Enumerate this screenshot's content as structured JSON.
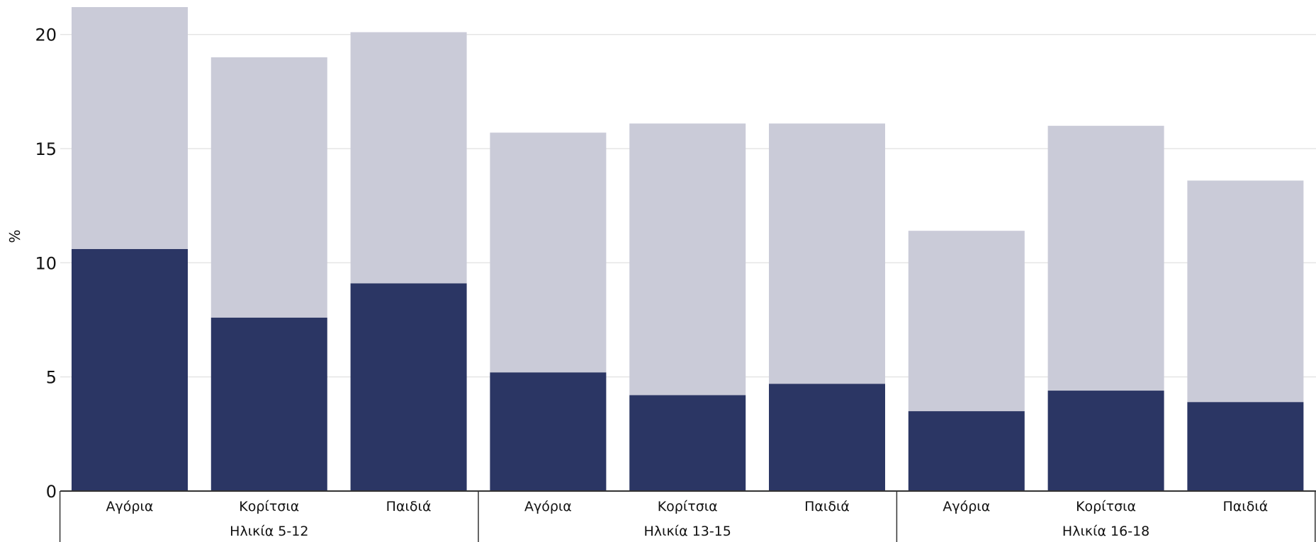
{
  "chart_data": {
    "type": "bar",
    "stacked": true,
    "ylabel": "%",
    "ylim": [
      0,
      21.2
    ],
    "yticks": [
      0,
      5,
      10,
      15,
      20
    ],
    "grid": true,
    "groups": [
      {
        "label": "Ηλικία 5-12",
        "categories": [
          "Αγόρια",
          "Κορίτσια",
          "Παιδιά"
        ]
      },
      {
        "label": "Ηλικία 13-15",
        "categories": [
          "Αγόρια",
          "Κορίτσια",
          "Παιδιά"
        ]
      },
      {
        "label": "Ηλικία 16-18",
        "categories": [
          "Αγόρια",
          "Κορίτσια",
          "Παιδιά"
        ]
      }
    ],
    "series": [
      {
        "color": "#2b3664",
        "values": [
          10.6,
          7.6,
          9.1,
          5.2,
          4.2,
          4.7,
          3.5,
          4.4,
          3.9
        ]
      },
      {
        "color": "#cacbd8",
        "values": [
          10.6,
          11.4,
          11.0,
          10.5,
          11.9,
          11.4,
          7.9,
          11.6,
          9.7
        ]
      }
    ],
    "colors": {
      "grid": "#e5e5e5",
      "axis": "#333333"
    }
  }
}
